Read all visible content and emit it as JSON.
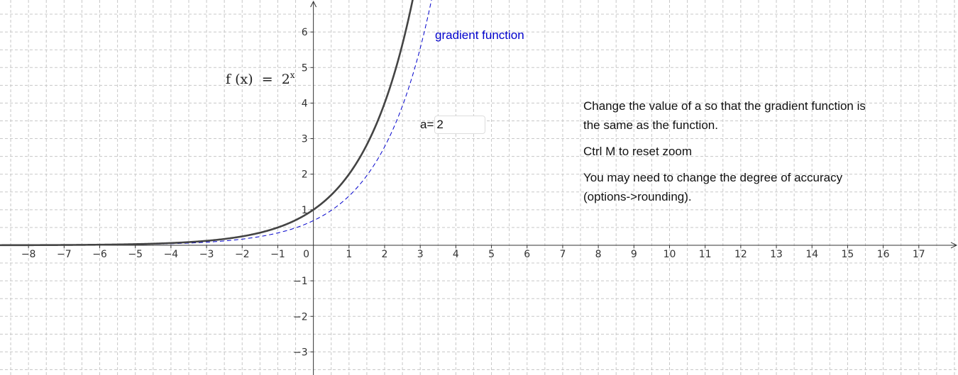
{
  "axes": {
    "x_range": [
      -8.8,
      18.1
    ],
    "y_range": [
      -3.65,
      6.9
    ],
    "x_ticks": [
      -8,
      -7,
      -6,
      -5,
      -4,
      -3,
      -2,
      -1,
      0,
      1,
      2,
      3,
      4,
      5,
      6,
      7,
      8,
      9,
      10,
      11,
      12,
      13,
      14,
      15,
      16,
      17
    ],
    "y_ticks": [
      -3,
      -2,
      -1,
      1,
      2,
      3,
      4,
      5,
      6
    ],
    "grid": true,
    "grid_style": "dashed"
  },
  "function": {
    "label": "f (x)  =  2",
    "label_exponent": "x",
    "base": 2,
    "color": "#444444"
  },
  "gradient": {
    "label": "gradient function",
    "color": "#0000cc",
    "style": "dashed"
  },
  "input": {
    "label": "a=",
    "value": "2"
  },
  "notes": {
    "line1": "Change the value of a so that the gradient function is the same as the function.",
    "line2": "Ctrl M to reset zoom",
    "line3": "You may need to change the degree of accuracy (options->rounding)."
  },
  "colors": {
    "grid": "#c8c8c8",
    "axis": "#333333"
  }
}
